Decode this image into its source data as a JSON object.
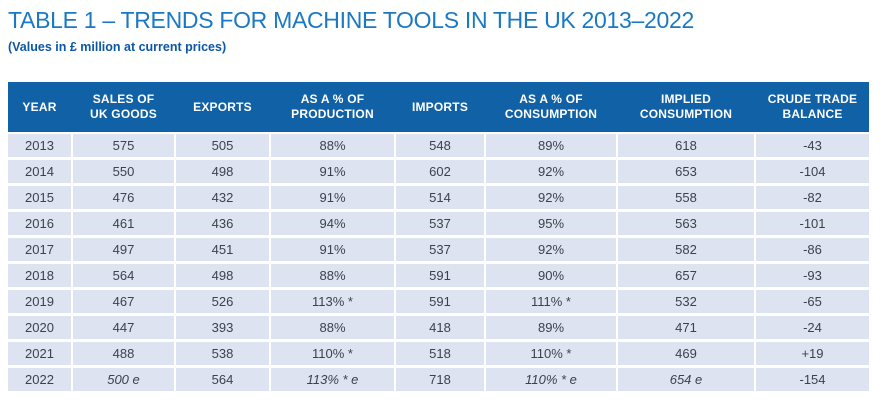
{
  "title": "TABLE 1 – TRENDS FOR MACHINE TOOLS IN THE UK 2013–2022",
  "subtitle": "(Values in £ million at current prices)",
  "colors": {
    "title_blue": "#1b79c4",
    "subtitle_blue": "#0c57a5",
    "header_bg": "#1161a6",
    "header_text": "#ffffff",
    "row_bg": "#dee3f1",
    "cell_text": "#3b414d"
  },
  "table": {
    "columns": [
      "YEAR",
      "SALES OF\nUK GOODS",
      "EXPORTS",
      "AS A % OF\nPRODUCTION",
      "IMPORTS",
      "AS A % OF\nCONSUMPTION",
      "IMPLIED\nCONSUMPTION",
      "CRUDE TRADE\nBALANCE"
    ],
    "rows": [
      {
        "cells": [
          "2013",
          "575",
          "505",
          "88%",
          "548",
          "89%",
          "618",
          "-43"
        ],
        "italics": []
      },
      {
        "cells": [
          "2014",
          "550",
          "498",
          "91%",
          "602",
          "92%",
          "653",
          "-104"
        ],
        "italics": []
      },
      {
        "cells": [
          "2015",
          "476",
          "432",
          "91%",
          "514",
          "92%",
          "558",
          "-82"
        ],
        "italics": []
      },
      {
        "cells": [
          "2016",
          "461",
          "436",
          "94%",
          "537",
          "95%",
          "563",
          "-101"
        ],
        "italics": []
      },
      {
        "cells": [
          "2017",
          "497",
          "451",
          "91%",
          "537",
          "92%",
          "582",
          "-86"
        ],
        "italics": []
      },
      {
        "cells": [
          "2018",
          "564",
          "498",
          "88%",
          "591",
          "90%",
          "657",
          "-93"
        ],
        "italics": []
      },
      {
        "cells": [
          "2019",
          "467",
          "526",
          "113% *",
          "591",
          "111% *",
          "532",
          "-65"
        ],
        "italics": []
      },
      {
        "cells": [
          "2020",
          "447",
          "393",
          "88%",
          "418",
          "89%",
          "471",
          "-24"
        ],
        "italics": []
      },
      {
        "cells": [
          "2021",
          "488",
          "538",
          "110% *",
          "518",
          "110% *",
          "469",
          "+19"
        ],
        "italics": []
      },
      {
        "cells": [
          "2022",
          "500 e",
          "564",
          "113% * e",
          "718",
          "110% * e",
          "654 e",
          "-154"
        ],
        "italics": [
          1,
          3,
          5,
          6
        ]
      }
    ]
  }
}
